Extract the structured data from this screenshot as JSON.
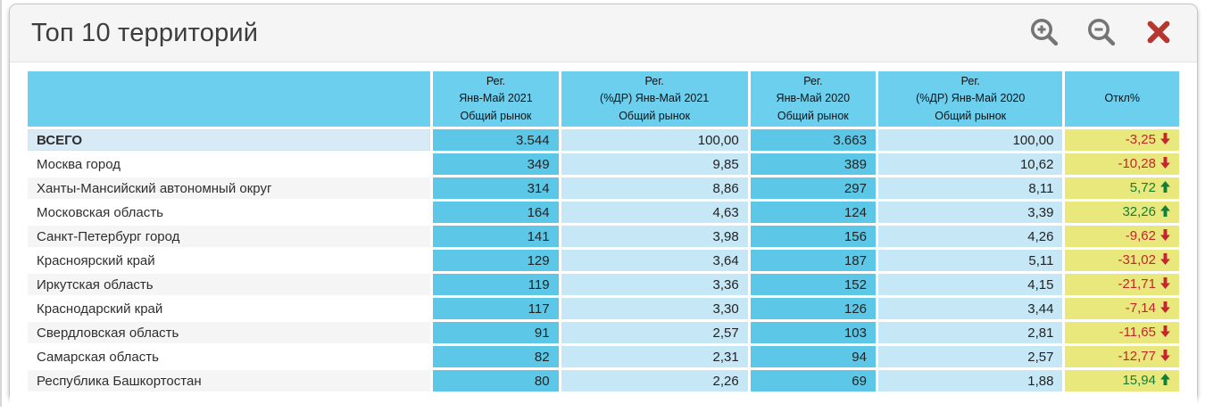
{
  "panel": {
    "title": "Топ 10 территорий",
    "toolbar": {
      "zoom_in_icon": "magnifier-plus",
      "zoom_out_icon": "magnifier-minus",
      "close_icon": "red-x-cross"
    },
    "colors": {
      "header_blue": "#6dcfee",
      "cell_blue": "#5cc7e7",
      "cell_light_blue": "#c6e7f6",
      "total_row_blue": "#d7eaf6",
      "otkl_yellow": "#e9e87c",
      "trend_up_green": "#157d36",
      "trend_down_red": "#c1272d",
      "icon_gray": "#757575",
      "close_red": "#b5372f"
    }
  },
  "table": {
    "header": {
      "territory_label": "",
      "columns": [
        {
          "line1": "Рег.",
          "line2": "Янв-Май 2021",
          "line3": "Общий рынок"
        },
        {
          "line1": "Рег.",
          "line2": "(%ДР) Янв-Май 2021",
          "line3": "Общий рынок"
        },
        {
          "line1": "Рег.",
          "line2": "Янв-Май 2020",
          "line3": "Общий рынок"
        },
        {
          "line1": "Рег.",
          "line2": "(%ДР) Янв-Май 2020",
          "line3": "Общий рынок"
        },
        {
          "line1": "Откл%"
        }
      ]
    },
    "rows": [
      {
        "name": "ВСЕГО",
        "reg2021": "3.544",
        "pct2021": "100,00",
        "reg2020": "3.663",
        "pct2020": "100,00",
        "otkl": "-3,25",
        "trend": "down"
      },
      {
        "name": "Москва город",
        "reg2021": "349",
        "pct2021": "9,85",
        "reg2020": "389",
        "pct2020": "10,62",
        "otkl": "-10,28",
        "trend": "down"
      },
      {
        "name": "Ханты-Мансийский автономный округ",
        "reg2021": "314",
        "pct2021": "8,86",
        "reg2020": "297",
        "pct2020": "8,11",
        "otkl": "5,72",
        "trend": "up"
      },
      {
        "name": "Московская область",
        "reg2021": "164",
        "pct2021": "4,63",
        "reg2020": "124",
        "pct2020": "3,39",
        "otkl": "32,26",
        "trend": "up"
      },
      {
        "name": "Санкт-Петербург город",
        "reg2021": "141",
        "pct2021": "3,98",
        "reg2020": "156",
        "pct2020": "4,26",
        "otkl": "-9,62",
        "trend": "down"
      },
      {
        "name": "Красноярский край",
        "reg2021": "129",
        "pct2021": "3,64",
        "reg2020": "187",
        "pct2020": "5,11",
        "otkl": "-31,02",
        "trend": "down"
      },
      {
        "name": "Иркутская область",
        "reg2021": "119",
        "pct2021": "3,36",
        "reg2020": "152",
        "pct2020": "4,15",
        "otkl": "-21,71",
        "trend": "down"
      },
      {
        "name": "Краснодарский край",
        "reg2021": "117",
        "pct2021": "3,30",
        "reg2020": "126",
        "pct2020": "3,44",
        "otkl": "-7,14",
        "trend": "down"
      },
      {
        "name": "Свердловская область",
        "reg2021": "91",
        "pct2021": "2,57",
        "reg2020": "103",
        "pct2020": "2,81",
        "otkl": "-11,65",
        "trend": "down"
      },
      {
        "name": "Самарская область",
        "reg2021": "82",
        "pct2021": "2,31",
        "reg2020": "94",
        "pct2020": "2,57",
        "otkl": "-12,77",
        "trend": "down"
      },
      {
        "name": "Республика Башкортостан",
        "reg2021": "80",
        "pct2021": "2,26",
        "reg2020": "69",
        "pct2020": "1,88",
        "otkl": "15,94",
        "trend": "up"
      }
    ]
  }
}
